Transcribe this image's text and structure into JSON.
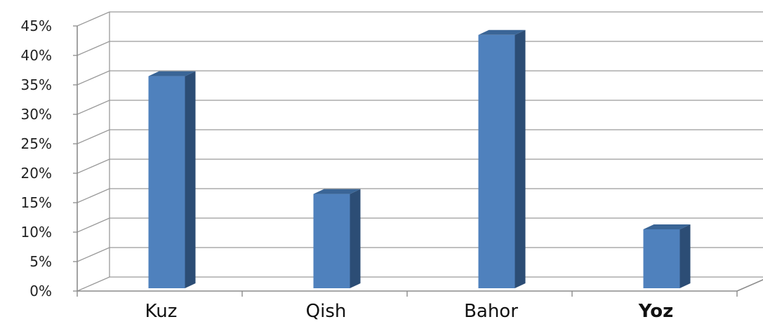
{
  "chart_data": {
    "type": "bar",
    "categories": [
      "Kuz",
      "Qish",
      "Bahor",
      "Yoz"
    ],
    "values": [
      36,
      16,
      43,
      10
    ],
    "y_unit": "%",
    "ylim": [
      0,
      45
    ],
    "yticks": [
      "0%",
      "5%",
      "10%",
      "15%",
      "20%",
      "25%",
      "30%",
      "35%",
      "40%",
      "45%"
    ],
    "title": "",
    "xlabel": "",
    "ylabel": "",
    "grid": true,
    "legend": "none",
    "style_3d": true,
    "bold_categories": [
      "Yoz"
    ],
    "colors": {
      "bar_front": "#4f81bd",
      "bar_side": "#2c4d75",
      "bar_top": "#3a6596",
      "grid": "#9a9a9a",
      "axis": "#8c8c8c"
    }
  }
}
